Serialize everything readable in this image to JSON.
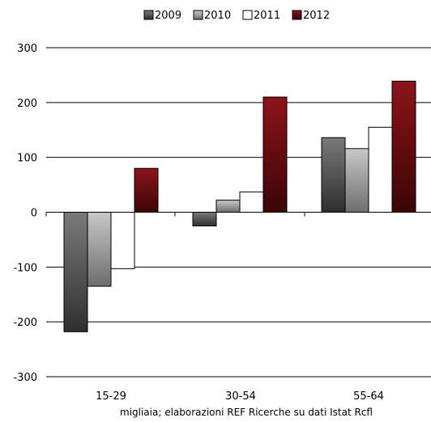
{
  "chart_data": {
    "type": "bar",
    "categories": [
      "15-29",
      "30-54",
      "55-64"
    ],
    "series": [
      {
        "name": "2009",
        "values": [
          -218,
          -25,
          136
        ],
        "color": "#505050"
      },
      {
        "name": "2010",
        "values": [
          -135,
          22,
          116
        ],
        "color": "#a9a9a9"
      },
      {
        "name": "2011",
        "values": [
          -103,
          37,
          155
        ],
        "color": "#ffffff"
      },
      {
        "name": "2012",
        "values": [
          80,
          210,
          239
        ],
        "color": "#7a0f12"
      }
    ],
    "ylim": [
      -300,
      300
    ],
    "yticks": [
      300,
      200,
      100,
      0,
      -100,
      -200,
      -300
    ],
    "grid": true,
    "legend_position": "top-center",
    "caption": "migliaia; elaborazioni REF Ricerche su dati Istat Rcfl"
  }
}
